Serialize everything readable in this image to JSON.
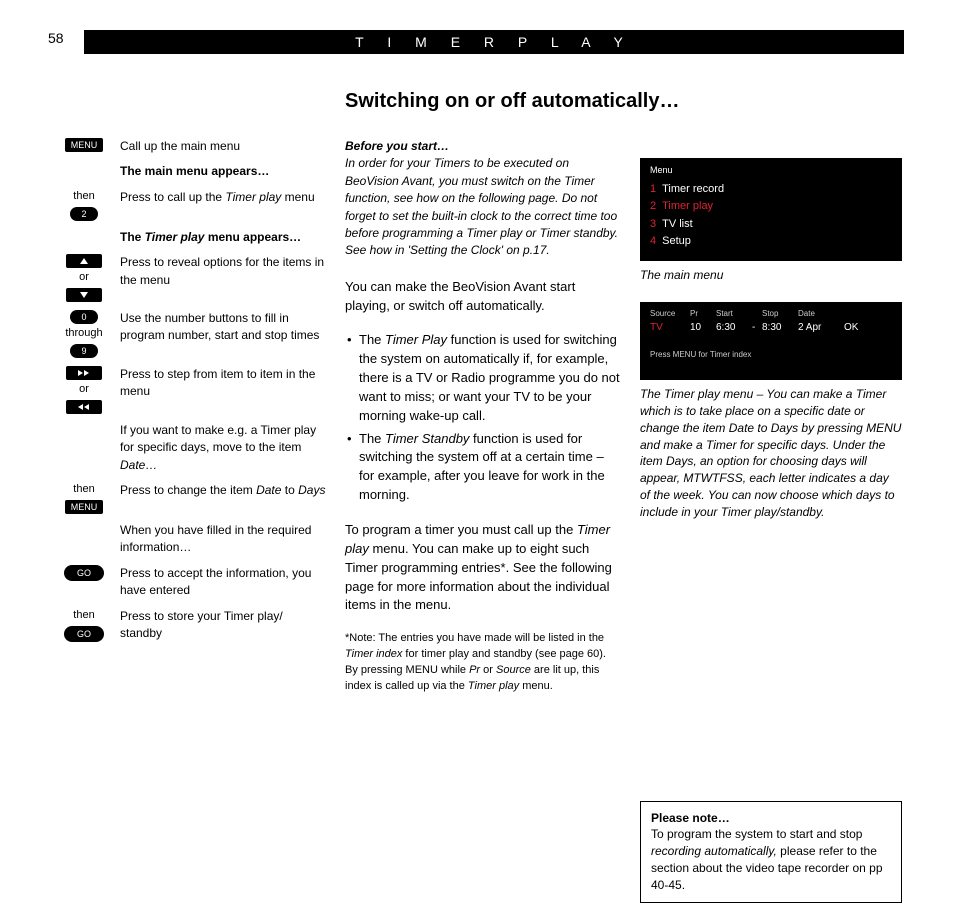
{
  "page_number": "58",
  "header": "T I M E R   P L A Y",
  "section_title": "Switching on or off automatically…",
  "left": {
    "menu_btn": "MENU",
    "go_btn": "GO",
    "btn_2": "2",
    "btn_0": "0",
    "btn_9": "9",
    "or": "or",
    "then": "then",
    "through": "through",
    "step1": "Call up the main menu",
    "menu_appears": "The main menu appears…",
    "step2_a": "Press to call up the ",
    "step2_b": "Timer play",
    "step2_c": " menu",
    "tp_appears_a": "The ",
    "tp_appears_b": "Timer play",
    "tp_appears_c": " menu appears…",
    "step3": "Press to reveal options for the items in the menu",
    "step4": "Use the number buttons to fill in program number, start and stop times",
    "step5": "Press to step from item to item in the menu",
    "step6_a": "If you want to make e.g. a Timer play for specific days, move to the item ",
    "step6_b": "Date…",
    "step7_a": "Press to change the item ",
    "step7_b": "Date",
    "step7_c": " to ",
    "step7_d": "Days",
    "step8": "When you have filled in the required information…",
    "step9": "Press to accept the information, you have entered",
    "step10": "Press to store your Timer play/ standby"
  },
  "mid": {
    "intro_head": "Before you start…",
    "intro": "In order for your Timers to be executed on BeoVision Avant, you must switch on the Timer function, see how on the following page. Do not forget to set the built-in clock to the correct time too before programming a Timer play or Timer standby. See how in 'Setting the Clock' on p.17.",
    "p1": "You can make the BeoVision Avant start playing, or switch off automatically.",
    "li1_a": "The ",
    "li1_b": "Timer Play",
    "li1_c": " function is used for switching the system on automatically if, for example, there is a TV or Radio programme you do not want to miss; or want your TV to be your morning wake-up call.",
    "li2_a": "The ",
    "li2_b": "Timer Standby",
    "li2_c": " function is used for switching the system off at a certain time – for example, after you leave for work in the morning.",
    "p3_a": "To program a timer you must call up the ",
    "p3_b": "Timer play",
    "p3_c": " menu. You can make up to eight such Timer programming entries*. See the following page for more information about the individual items in the menu.",
    "foot_a": "*Note: The entries you have made will be listed in the ",
    "foot_b": "Timer index",
    "foot_c": " for timer play and standby (see page 60). By pressing MENU while ",
    "foot_d": "Pr",
    "foot_e": " or ",
    "foot_f": "Source",
    "foot_g": " are lit up, this index is called up via the ",
    "foot_h": "Timer play",
    "foot_i": " menu."
  },
  "right": {
    "osd_menu_label": "Menu",
    "osd_items": [
      {
        "n": "1",
        "label": "Timer record"
      },
      {
        "n": "2",
        "label": "Timer play"
      },
      {
        "n": "3",
        "label": "TV list"
      },
      {
        "n": "4",
        "label": "Setup"
      }
    ],
    "osd_selected_index": 1,
    "osd_caption": "The main menu",
    "osd2_headers": {
      "source": "Source",
      "pr": "Pr",
      "start": "Start",
      "stop": "Stop",
      "date": "Date"
    },
    "osd2_values": {
      "source": "TV",
      "pr": "10",
      "start": "6:30",
      "dash": "-",
      "stop": "8:30",
      "date": "2 Apr",
      "ok": "OK"
    },
    "osd2_hint": "Press MENU for Timer index",
    "osd2_caption": "The Timer play menu – You can make a Timer which is to take place on a specific date or change the item Date to Days by pressing MENU and make a Timer for specific days. Under the item Days, an option for choosing days will appear, MTWTFSS, each letter indicates a day of  the week. You can now choose which days to include in your Timer play/standby.",
    "note_head": "Please note…",
    "note_a": "To program the system to start and stop ",
    "note_b": "recording automatically,",
    "note_c": " please refer to the section about the video tape recorder on pp 40-45."
  }
}
